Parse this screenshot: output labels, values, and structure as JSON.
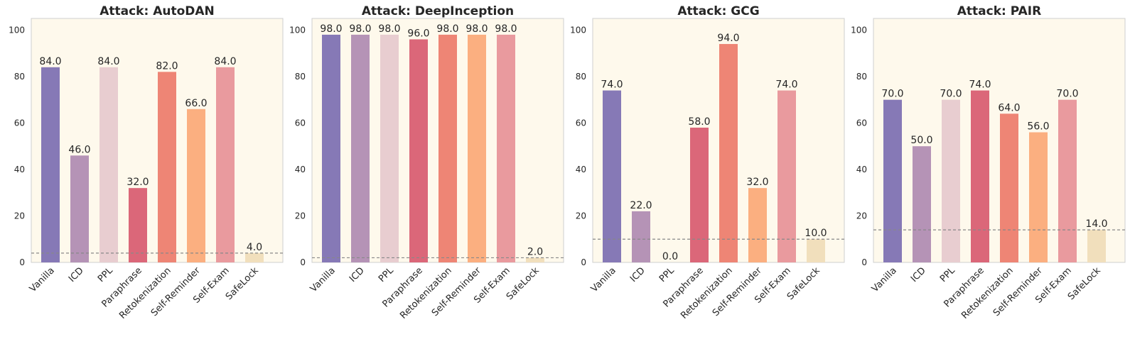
{
  "chart_data": [
    {
      "type": "bar",
      "title": "Attack: AutoDAN",
      "categories": [
        "Vanilla",
        "ICD",
        "PPL",
        "Paraphrase",
        "Retokenization",
        "Self-Reminder",
        "Self-Exam",
        "SafeLock"
      ],
      "values": [
        84.0,
        46.0,
        84.0,
        32.0,
        82.0,
        66.0,
        84.0,
        4.0
      ],
      "labels": [
        "84.0",
        "46.0",
        "84.0",
        "32.0",
        "82.0",
        "66.0",
        "84.0",
        "4.0"
      ],
      "reference_line": 4.0,
      "ylim": [
        0,
        105
      ],
      "yticks": [
        "0",
        "20",
        "40",
        "60",
        "80",
        "100"
      ],
      "grid": false
    },
    {
      "type": "bar",
      "title": "Attack: DeepInception",
      "categories": [
        "Vanilla",
        "ICD",
        "PPL",
        "Paraphrase",
        "Retokenization",
        "Self-Reminder",
        "Self-Exam",
        "SafeLock"
      ],
      "values": [
        98.0,
        98.0,
        98.0,
        96.0,
        98.0,
        98.0,
        98.0,
        2.0
      ],
      "labels": [
        "98.0",
        "98.0",
        "98.0",
        "96.0",
        "98.0",
        "98.0",
        "98.0",
        "2.0"
      ],
      "reference_line": 2.0,
      "ylim": [
        0,
        105
      ],
      "yticks": [
        "0",
        "20",
        "40",
        "60",
        "80",
        "100"
      ],
      "grid": false
    },
    {
      "type": "bar",
      "title": "Attack: GCG",
      "categories": [
        "Vanilla",
        "ICD",
        "PPL",
        "Paraphrase",
        "Retokenization",
        "Self-Reminder",
        "Self-Exam",
        "SafeLock"
      ],
      "values": [
        74.0,
        22.0,
        0.0,
        58.0,
        94.0,
        32.0,
        74.0,
        10.0
      ],
      "labels": [
        "74.0",
        "22.0",
        "0.0",
        "58.0",
        "94.0",
        "32.0",
        "74.0",
        "10.0"
      ],
      "reference_line": 10.0,
      "ylim": [
        0,
        105
      ],
      "yticks": [
        "0",
        "20",
        "40",
        "60",
        "80",
        "100"
      ],
      "grid": false
    },
    {
      "type": "bar",
      "title": "Attack: PAIR",
      "categories": [
        "Vanilla",
        "ICD",
        "PPL",
        "Paraphrase",
        "Retokenization",
        "Self-Reminder",
        "Self-Exam",
        "SafeLock"
      ],
      "values": [
        70.0,
        50.0,
        70.0,
        74.0,
        64.0,
        56.0,
        70.0,
        14.0
      ],
      "labels": [
        "70.0",
        "50.0",
        "70.0",
        "74.0",
        "64.0",
        "56.0",
        "70.0",
        "14.0"
      ],
      "reference_line": 14.0,
      "ylim": [
        0,
        105
      ],
      "yticks": [
        "0",
        "20",
        "40",
        "60",
        "80",
        "100"
      ],
      "grid": false
    }
  ],
  "colors": {
    "bars": [
      "#8679b6",
      "#b593b6",
      "#e8cdd0",
      "#db6779",
      "#ee8575",
      "#fbaf80",
      "#e99a9e",
      "#f1dfbc"
    ],
    "plot_background": "#fef9ec",
    "frame": "#cfcfcf",
    "reference_line": "#888888",
    "text": "#262626"
  }
}
